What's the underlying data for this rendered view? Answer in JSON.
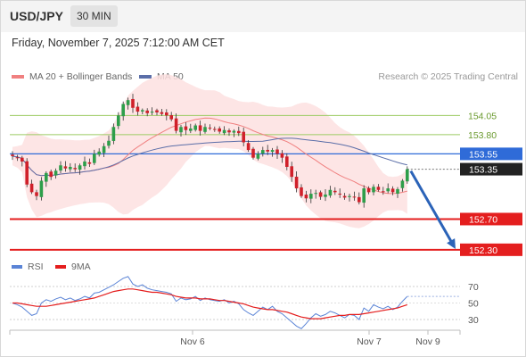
{
  "header": {
    "symbol": "USD/JPY",
    "timeframe": "30 MIN",
    "datetime": "Friday, November 7, 2025 7:12:00 AM CET"
  },
  "legend": {
    "ma20_label": "MA 20 + Bollinger Bands",
    "ma50_label": "MA 50",
    "credit": "Research © 2025 Trading Central"
  },
  "colors": {
    "bull": "#2e9e4a",
    "bear": "#d0202a",
    "ma20": "#f08080",
    "ma50": "#5b6ea8",
    "band_fill": "#fde0e0",
    "support": "#e41e1e",
    "resistance": "#9ccb63",
    "pivot": "#2f6bd8",
    "arrow": "#2b63b8",
    "rsi": "#5b84d6",
    "rsi_ma": "#e41e1e"
  },
  "price_levels": [
    {
      "value": "154.05",
      "kind": "resistance"
    },
    {
      "value": "153.80",
      "kind": "resistance"
    },
    {
      "value": "153.55",
      "kind": "pivot"
    },
    {
      "value": "153.35",
      "kind": "last"
    },
    {
      "value": "152.70",
      "kind": "support"
    },
    {
      "value": "152.30",
      "kind": "support"
    }
  ],
  "rsi_panel": {
    "rsi_label": "RSI",
    "ma_label": "9MA",
    "levels": [
      "70",
      "50",
      "30"
    ]
  },
  "x_axis": {
    "labels": [
      "Nov 6",
      "Nov 7",
      "Nov 9"
    ]
  },
  "chart_data": {
    "type": "candlestick",
    "price_range": [
      152.24,
      154.45
    ],
    "closes": [
      153.52,
      153.5,
      153.45,
      153.15,
      153.05,
      153.0,
      153.2,
      153.3,
      153.25,
      153.33,
      153.4,
      153.36,
      153.38,
      153.35,
      153.4,
      153.45,
      153.42,
      153.55,
      153.58,
      153.65,
      153.72,
      153.9,
      154.05,
      154.2,
      154.25,
      154.15,
      154.1,
      154.12,
      154.08,
      154.1,
      154.09,
      154.07,
      154.05,
      154.0,
      153.85,
      153.9,
      153.86,
      153.88,
      153.92,
      153.85,
      153.9,
      153.88,
      153.87,
      153.84,
      153.86,
      153.83,
      153.85,
      153.82,
      153.7,
      153.6,
      153.5,
      153.55,
      153.6,
      153.58,
      153.6,
      153.55,
      153.5,
      153.38,
      153.25,
      153.1,
      153.0,
      152.97,
      153.03,
      153.04,
      152.99,
      153.02,
      153.08,
      153.05,
      153.02,
      152.98,
      153.0,
      152.99,
      152.92,
      153.1,
      153.05,
      153.12,
      153.08,
      153.06,
      153.1,
      153.05,
      153.09,
      153.2,
      153.35
    ],
    "rsi": [
      50,
      48,
      45,
      40,
      35,
      37,
      50,
      54,
      52,
      55,
      57,
      54,
      56,
      53,
      55,
      58,
      56,
      62,
      63,
      66,
      69,
      72,
      76,
      80,
      82,
      73,
      70,
      72,
      68,
      66,
      65,
      64,
      63,
      61,
      52,
      56,
      54,
      55,
      58,
      53,
      56,
      54,
      53,
      52,
      54,
      50,
      52,
      49,
      42,
      38,
      35,
      40,
      45,
      42,
      46,
      40,
      37,
      32,
      27,
      22,
      19,
      25,
      32,
      37,
      34,
      36,
      40,
      38,
      35,
      32,
      36,
      35,
      30,
      44,
      40,
      48,
      45,
      43,
      46,
      42,
      45,
      52,
      58
    ],
    "rsi_ma": [
      50,
      50,
      49,
      48,
      47,
      46,
      46,
      46,
      47,
      48,
      49,
      50,
      51,
      52,
      53,
      54,
      55,
      56,
      58,
      60,
      62,
      64,
      65,
      66,
      67,
      67,
      66,
      65,
      64,
      63,
      63,
      62,
      61,
      60,
      58,
      57,
      56,
      56,
      56,
      55,
      55,
      55,
      54,
      53,
      53,
      52,
      51,
      50,
      49,
      47,
      45,
      44,
      43,
      42,
      42,
      41,
      40,
      39,
      37,
      35,
      33,
      32,
      31,
      31,
      31,
      32,
      33,
      34,
      35,
      35,
      36,
      36,
      36,
      37,
      38,
      39,
      40,
      41,
      42,
      43,
      44,
      46,
      48
    ],
    "ylabel": "",
    "xlabel": ""
  }
}
